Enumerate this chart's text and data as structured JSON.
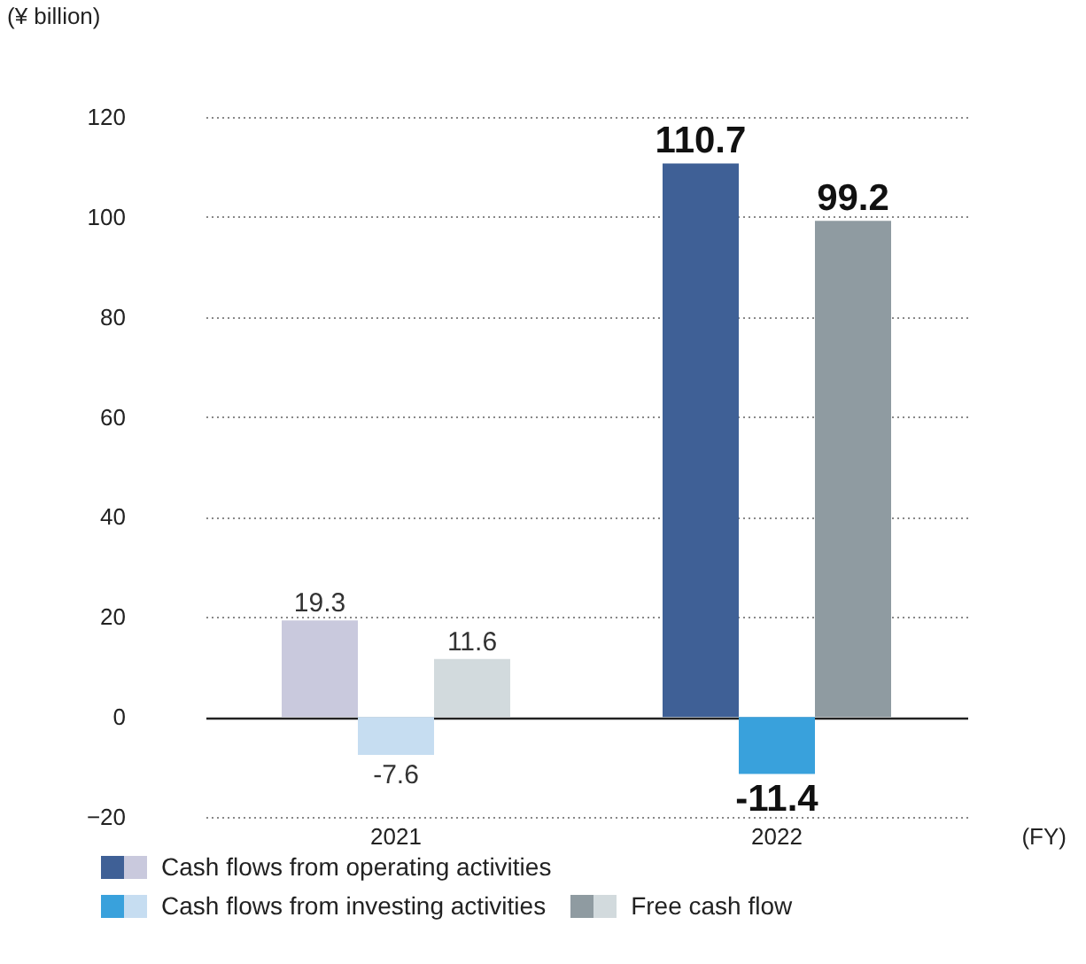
{
  "chart_data": {
    "type": "bar",
    "ylabel": "(¥ billion)",
    "xlabel": "(FY)",
    "categories": [
      "2021",
      "2022"
    ],
    "series": [
      {
        "name": "Cash flows from operating activities",
        "colors": [
          "#c9c9dd",
          "#3f6096"
        ],
        "values": [
          19.3,
          110.7
        ]
      },
      {
        "name": "Cash flows from investing activities",
        "colors": [
          "#c6ddf1",
          "#39a1dc"
        ],
        "values": [
          -7.6,
          -11.4
        ]
      },
      {
        "name": "Free cash flow",
        "colors": [
          "#d2dadd",
          "#8f9ba1"
        ],
        "values": [
          11.6,
          99.2
        ]
      }
    ],
    "ylim": [
      -20,
      120
    ],
    "yticks": [
      -20,
      0,
      20,
      40,
      60,
      80,
      100,
      120
    ],
    "grid": "y",
    "data_labels": true,
    "legend": "bottom left"
  }
}
